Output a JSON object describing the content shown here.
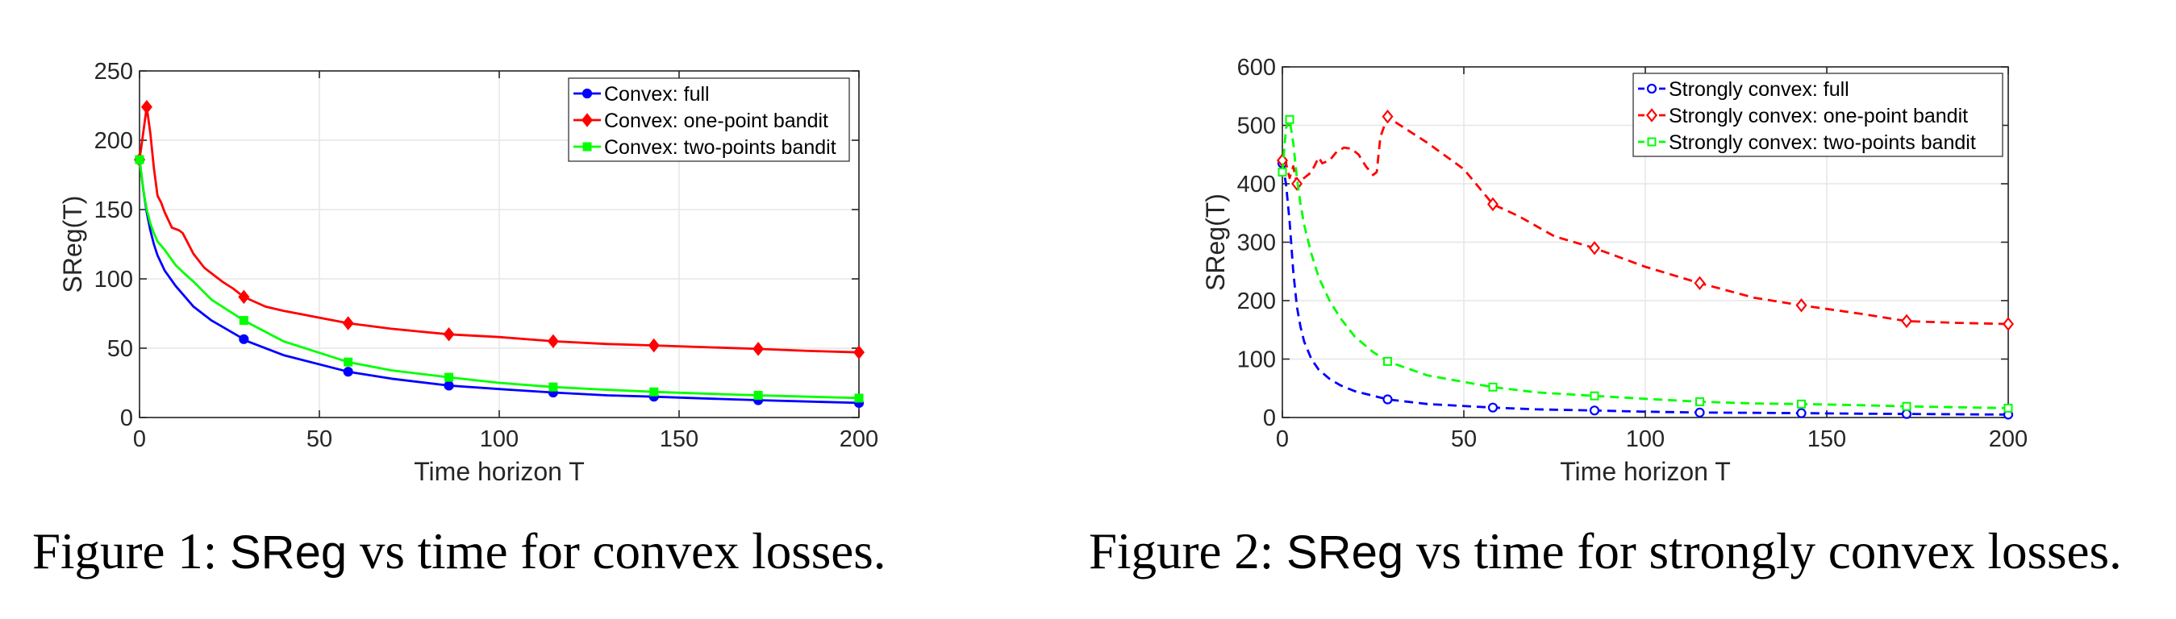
{
  "colors": {
    "blue": "#0000ff",
    "red": "#ff0000",
    "green": "#00ff00"
  },
  "chart_data": [
    {
      "type": "line",
      "xlabel": "Time horizon T",
      "ylabel": "SReg(T)",
      "xlim": [
        0,
        200
      ],
      "ylim": [
        0,
        250
      ],
      "xticks": [
        "0",
        "50",
        "100",
        "150",
        "200"
      ],
      "yticks": [
        "0",
        "50",
        "100",
        "150",
        "200",
        "250"
      ],
      "grid": true,
      "legend": "top-right",
      "caption_prefix": "Figure 1: ",
      "caption_sreg": "SReg",
      "caption_suffix": " vs time for convex losses.",
      "series": [
        {
          "name": "Convex: full",
          "color": "#0000ff",
          "dash": false,
          "marker": "circle",
          "marker_filled": true,
          "x": [
            0,
            1,
            2,
            3,
            4,
            5,
            7,
            10,
            15,
            20,
            30,
            40,
            58,
            70,
            86,
            100,
            115,
            130,
            143,
            160,
            172,
            186,
            200
          ],
          "y": [
            186,
            165,
            148,
            135,
            125,
            117,
            106,
            95,
            80,
            70,
            55,
            45,
            33,
            28,
            23,
            20.5,
            18,
            16,
            15,
            13.5,
            12.5,
            11.5,
            10.5
          ],
          "marker_x": [
            0,
            29,
            58,
            86,
            115,
            143,
            172,
            200
          ]
        },
        {
          "name": "Convex: one-point bandit",
          "color": "#ff0000",
          "dash": false,
          "marker": "diamond",
          "marker_filled": true,
          "x": [
            0,
            1,
            2,
            3,
            4,
            5,
            6,
            7,
            9,
            11,
            12,
            13,
            15,
            18,
            20,
            23,
            26,
            29,
            35,
            40,
            58,
            70,
            86,
            100,
            115,
            130,
            143,
            160,
            172,
            186,
            200
          ],
          "y": [
            186,
            205,
            224,
            205,
            180,
            160,
            155,
            148,
            137,
            135,
            133,
            128,
            118,
            108,
            104,
            98,
            93,
            87,
            80,
            77,
            68,
            64,
            60,
            58,
            55,
            53,
            52,
            50.5,
            49.5,
            48,
            47
          ],
          "marker_x": [
            0,
            2,
            29,
            58,
            86,
            115,
            143,
            172,
            200
          ]
        },
        {
          "name": "Convex: two-points bandit",
          "color": "#00ff00",
          "dash": false,
          "marker": "square",
          "marker_filled": true,
          "x": [
            0,
            1,
            2,
            3,
            4,
            5,
            7,
            10,
            12,
            15,
            20,
            29,
            40,
            58,
            70,
            86,
            100,
            115,
            130,
            143,
            160,
            172,
            186,
            200
          ],
          "y": [
            186,
            165,
            150,
            140,
            133,
            127,
            121,
            110,
            105,
            98,
            85,
            70,
            55,
            40,
            34,
            29,
            25,
            22,
            20,
            18.5,
            17,
            16,
            15,
            14
          ],
          "marker_x": [
            0,
            29,
            58,
            86,
            115,
            143,
            172,
            200
          ]
        }
      ]
    },
    {
      "type": "line",
      "xlabel": "Time horizon T",
      "ylabel": "SReg(T)",
      "xlim": [
        0,
        200
      ],
      "ylim": [
        0,
        600
      ],
      "xticks": [
        "0",
        "50",
        "100",
        "150",
        "200"
      ],
      "yticks": [
        "0",
        "100",
        "200",
        "300",
        "400",
        "500",
        "600"
      ],
      "grid": true,
      "legend": "top-right",
      "caption_prefix": "Figure 2: ",
      "caption_sreg": "SReg",
      "caption_suffix": " vs time for strongly convex losses.",
      "series": [
        {
          "name": "Strongly convex: full",
          "color": "#0000ff",
          "dash": true,
          "marker": "circle",
          "marker_filled": false,
          "x": [
            0,
            1,
            2,
            3,
            4,
            5,
            6,
            8,
            10,
            13,
            16,
            20,
            29,
            40,
            58,
            70,
            86,
            100,
            115,
            130,
            143,
            160,
            172,
            186,
            200
          ],
          "y": [
            435,
            400,
            335,
            250,
            190,
            155,
            130,
            100,
            82,
            66,
            55,
            45,
            31,
            23,
            17,
            14,
            12,
            10,
            8.5,
            8,
            7.5,
            6.5,
            6,
            5.5,
            5
          ],
          "marker_x": [
            0,
            29,
            58,
            86,
            115,
            143,
            172,
            200
          ]
        },
        {
          "name": "Strongly convex: one-point bandit",
          "color": "#ff0000",
          "dash": true,
          "marker": "diamond",
          "marker_filled": false,
          "x": [
            0,
            1,
            2,
            3,
            4,
            6,
            8,
            10,
            11,
            13,
            15,
            17,
            19,
            21,
            23,
            25,
            26,
            27,
            29,
            30,
            35,
            40,
            50,
            58,
            65,
            75,
            86,
            100,
            115,
            130,
            143,
            160,
            172,
            186,
            200
          ],
          "y": [
            440,
            435,
            410,
            430,
            400,
            410,
            420,
            445,
            435,
            440,
            455,
            462,
            460,
            450,
            430,
            415,
            420,
            480,
            515,
            510,
            490,
            470,
            425,
            365,
            345,
            310,
            290,
            258,
            230,
            205,
            192,
            177,
            165,
            162,
            160
          ],
          "marker_x": [
            0,
            4,
            29,
            58,
            86,
            115,
            143,
            172,
            200
          ]
        },
        {
          "name": "Strongly convex: two-points bandit",
          "color": "#00ff00",
          "dash": true,
          "marker": "square",
          "marker_filled": false,
          "x": [
            0,
            1,
            2,
            3,
            4,
            5,
            6,
            8,
            10,
            13,
            16,
            20,
            25,
            29,
            40,
            58,
            70,
            86,
            100,
            115,
            130,
            143,
            160,
            172,
            186,
            200
          ],
          "y": [
            420,
            495,
            510,
            470,
            410,
            365,
            330,
            280,
            240,
            200,
            170,
            138,
            112,
            96,
            72,
            52,
            43,
            37,
            32,
            27,
            24,
            23,
            21,
            19,
            17.5,
            16
          ],
          "marker_x": [
            0,
            2,
            29,
            58,
            86,
            115,
            143,
            172,
            200
          ]
        }
      ]
    }
  ]
}
